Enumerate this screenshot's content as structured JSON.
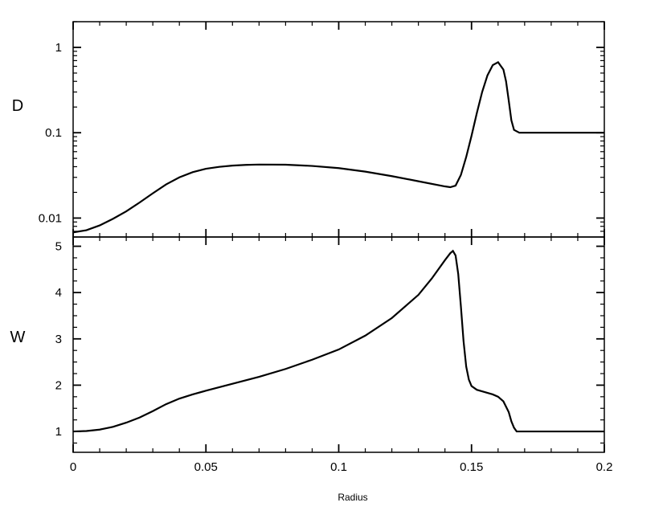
{
  "chart_data": [
    {
      "type": "line",
      "panel": "top",
      "title": "",
      "ylabel": "D",
      "xlabel": "",
      "y_scale": "log",
      "xlim": [
        0,
        0.2
      ],
      "ylim": [
        0.006,
        2
      ],
      "y_ticks": [
        {
          "value": 0.01,
          "label": "0.01"
        },
        {
          "value": 0.1,
          "label": "0.1"
        },
        {
          "value": 1,
          "label": "1"
        }
      ],
      "grid": false,
      "series": [
        {
          "x": [
            0,
            0.005,
            0.01,
            0.015,
            0.02,
            0.025,
            0.03,
            0.035,
            0.04,
            0.045,
            0.05,
            0.055,
            0.06,
            0.065,
            0.07,
            0.08,
            0.09,
            0.1,
            0.11,
            0.12,
            0.13,
            0.14,
            0.142,
            0.144,
            0.146,
            0.148,
            0.15,
            0.152,
            0.154,
            0.156,
            0.158,
            0.16,
            0.162,
            0.163,
            0.164,
            0.165,
            0.166,
            0.168,
            0.17,
            0.18,
            0.19,
            0.2
          ],
          "values": [
            0.0068,
            0.0072,
            0.0082,
            0.0098,
            0.012,
            0.0152,
            0.0195,
            0.0248,
            0.03,
            0.0345,
            0.0378,
            0.0398,
            0.0412,
            0.042,
            0.0424,
            0.0422,
            0.0408,
            0.0385,
            0.035,
            0.031,
            0.027,
            0.0235,
            0.023,
            0.024,
            0.032,
            0.052,
            0.092,
            0.17,
            0.3,
            0.47,
            0.62,
            0.67,
            0.55,
            0.4,
            0.24,
            0.14,
            0.108,
            0.1,
            0.1,
            0.1,
            0.1,
            0.1
          ]
        }
      ]
    },
    {
      "type": "line",
      "panel": "bottom",
      "title": "",
      "ylabel": "W",
      "xlabel": "Radius",
      "xlim": [
        0,
        0.2
      ],
      "ylim": [
        0.55,
        5.2
      ],
      "y_ticks": [
        {
          "value": 1,
          "label": "1"
        },
        {
          "value": 2,
          "label": "2"
        },
        {
          "value": 3,
          "label": "3"
        },
        {
          "value": 4,
          "label": "4"
        },
        {
          "value": 5,
          "label": "5"
        }
      ],
      "x_ticks": [
        {
          "value": 0,
          "label": "0"
        },
        {
          "value": 0.05,
          "label": "0.05"
        },
        {
          "value": 0.1,
          "label": "0.1"
        },
        {
          "value": 0.15,
          "label": "0.15"
        },
        {
          "value": 0.2,
          "label": "0.2"
        }
      ],
      "grid": false,
      "series": [
        {
          "x": [
            0,
            0.005,
            0.01,
            0.015,
            0.02,
            0.025,
            0.03,
            0.035,
            0.04,
            0.045,
            0.05,
            0.06,
            0.07,
            0.08,
            0.09,
            0.1,
            0.11,
            0.12,
            0.13,
            0.135,
            0.14,
            0.142,
            0.143,
            0.144,
            0.145,
            0.146,
            0.147,
            0.148,
            0.149,
            0.15,
            0.152,
            0.155,
            0.158,
            0.16,
            0.162,
            0.164,
            0.165,
            0.166,
            0.167,
            0.17,
            0.18,
            0.19,
            0.2
          ],
          "values": [
            1.0,
            1.01,
            1.04,
            1.1,
            1.19,
            1.3,
            1.44,
            1.59,
            1.71,
            1.8,
            1.88,
            2.03,
            2.18,
            2.35,
            2.55,
            2.77,
            3.07,
            3.45,
            3.95,
            4.3,
            4.7,
            4.85,
            4.9,
            4.8,
            4.4,
            3.7,
            2.95,
            2.4,
            2.12,
            1.98,
            1.9,
            1.85,
            1.8,
            1.75,
            1.65,
            1.42,
            1.22,
            1.08,
            1.0,
            1.0,
            1.0,
            1.0,
            1.0
          ]
        }
      ]
    }
  ]
}
